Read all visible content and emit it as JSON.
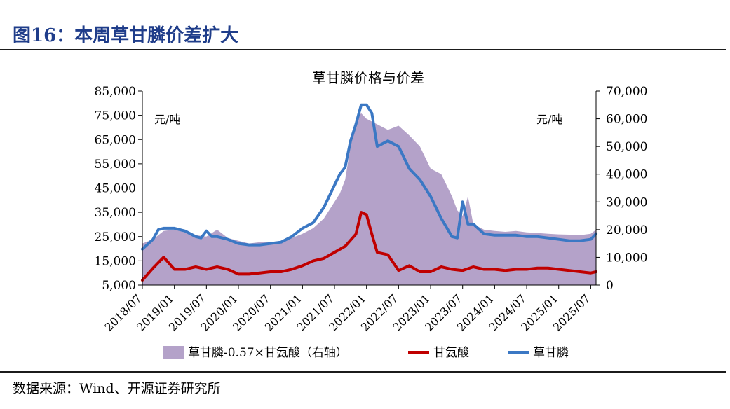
{
  "figure_title": "图16：本周草甘膦价差扩大",
  "source": "数据来源：Wind、开源证券研究所",
  "colors": {
    "title": "#1f3d8a",
    "spread": "#b4a2c9",
    "glycine": "#c00000",
    "glyphosate": "#3b78c4"
  },
  "chart_data": {
    "type": "line",
    "title": "草甘膦价格与价差",
    "left_unit": "元/吨",
    "right_unit": "元/吨",
    "y_left": {
      "min": 5000,
      "max": 85000,
      "ticks": [
        "85,000",
        "75,000",
        "65,000",
        "55,000",
        "45,000",
        "35,000",
        "25,000",
        "15,000",
        "5,000"
      ]
    },
    "y_right": {
      "min": 0,
      "max": 70000,
      "ticks": [
        "70,000",
        "60,000",
        "50,000",
        "40,000",
        "30,000",
        "20,000",
        "10,000",
        "0"
      ]
    },
    "x_ticks": [
      "2018/07",
      "2019/01",
      "2019/07",
      "2020/01",
      "2020/07",
      "2021/01",
      "2021/07",
      "2022/01",
      "2022/07",
      "2023/01",
      "2023/07",
      "2024/01",
      "2024/07",
      "2025/01",
      "2025/07"
    ],
    "x_range": [
      "2018/07",
      "2025/08"
    ],
    "legend_position": "bottom",
    "series": [
      {
        "name": "草甘膦-0.57×甘氨酸（右轴）",
        "type": "area",
        "axis": "right",
        "x": [
          "2018/07",
          "2018/09",
          "2018/11",
          "2019/01",
          "2019/03",
          "2019/05",
          "2019/07",
          "2019/09",
          "2019/11",
          "2020/01",
          "2020/03",
          "2020/05",
          "2020/07",
          "2020/09",
          "2020/11",
          "2021/01",
          "2021/03",
          "2021/05",
          "2021/07",
          "2021/08",
          "2021/09",
          "2021/10",
          "2021/11",
          "2021/12",
          "2022/01",
          "2022/03",
          "2022/05",
          "2022/07",
          "2022/09",
          "2022/11",
          "2023/01",
          "2023/03",
          "2023/05",
          "2023/06",
          "2023/07",
          "2023/08",
          "2023/09",
          "2023/11",
          "2024/01",
          "2024/03",
          "2024/05",
          "2024/07",
          "2024/09",
          "2024/11",
          "2025/01",
          "2025/03",
          "2025/05",
          "2025/07",
          "2025/08"
        ],
        "values": [
          15000,
          16500,
          19500,
          20000,
          19000,
          18000,
          17500,
          20000,
          17000,
          16000,
          15000,
          15500,
          15500,
          16000,
          17000,
          18500,
          20500,
          24000,
          30000,
          33000,
          38000,
          50000,
          60000,
          62000,
          60000,
          58000,
          56000,
          57500,
          54000,
          50000,
          42000,
          40000,
          32000,
          27000,
          25000,
          32000,
          22000,
          20000,
          19500,
          19200,
          19500,
          19000,
          18800,
          18500,
          18300,
          18200,
          18000,
          18500,
          20000
        ]
      },
      {
        "name": "甘氨酸",
        "type": "line",
        "axis": "left",
        "x": [
          "2018/07",
          "2018/09",
          "2018/11",
          "2019/01",
          "2019/03",
          "2019/05",
          "2019/07",
          "2019/09",
          "2019/11",
          "2020/01",
          "2020/03",
          "2020/05",
          "2020/07",
          "2020/09",
          "2020/11",
          "2021/01",
          "2021/03",
          "2021/05",
          "2021/07",
          "2021/09",
          "2021/11",
          "2021/12",
          "2022/01",
          "2022/02",
          "2022/03",
          "2022/05",
          "2022/07",
          "2022/09",
          "2022/11",
          "2023/01",
          "2023/03",
          "2023/05",
          "2023/07",
          "2023/09",
          "2023/11",
          "2024/01",
          "2024/03",
          "2024/05",
          "2024/07",
          "2024/09",
          "2024/11",
          "2025/01",
          "2025/03",
          "2025/05",
          "2025/07",
          "2025/08"
        ],
        "values": [
          7000,
          12000,
          16500,
          11500,
          11500,
          12500,
          11500,
          12500,
          11500,
          9500,
          9500,
          10000,
          10500,
          10500,
          11500,
          13000,
          15000,
          16000,
          18500,
          21000,
          26000,
          35000,
          34000,
          26000,
          18500,
          17500,
          11000,
          13000,
          10500,
          10500,
          12500,
          11500,
          11000,
          12500,
          11500,
          11500,
          11000,
          11500,
          11500,
          12000,
          12000,
          11500,
          11000,
          10500,
          10000,
          10500
        ]
      },
      {
        "name": "草甘膦",
        "type": "line",
        "axis": "right",
        "x": [
          "2018/07",
          "2018/09",
          "2018/10",
          "2018/11",
          "2019/01",
          "2019/03",
          "2019/05",
          "2019/06",
          "2019/07",
          "2019/08",
          "2019/09",
          "2019/11",
          "2020/01",
          "2020/03",
          "2020/05",
          "2020/07",
          "2020/09",
          "2020/11",
          "2021/01",
          "2021/03",
          "2021/05",
          "2021/07",
          "2021/08",
          "2021/09",
          "2021/10",
          "2021/11",
          "2021/12",
          "2022/01",
          "2022/02",
          "2022/03",
          "2022/05",
          "2022/07",
          "2022/09",
          "2022/11",
          "2023/01",
          "2023/03",
          "2023/05",
          "2023/06",
          "2023/07",
          "2023/08",
          "2023/09",
          "2023/11",
          "2024/01",
          "2024/03",
          "2024/05",
          "2024/07",
          "2024/09",
          "2024/11",
          "2025/01",
          "2025/03",
          "2025/05",
          "2025/07",
          "2025/08"
        ],
        "values": [
          13000,
          16500,
          20000,
          20500,
          20500,
          19500,
          17500,
          17000,
          19500,
          17500,
          17500,
          16500,
          15000,
          14500,
          14500,
          15000,
          15500,
          17500,
          20500,
          22500,
          28000,
          36000,
          40000,
          42500,
          52000,
          58000,
          65000,
          65000,
          62000,
          50000,
          52000,
          50000,
          42000,
          38000,
          32000,
          24000,
          17500,
          17000,
          30000,
          22000,
          22000,
          18500,
          18000,
          18000,
          18000,
          17500,
          17500,
          17000,
          16500,
          16000,
          16000,
          16500,
          18500
        ]
      }
    ]
  }
}
